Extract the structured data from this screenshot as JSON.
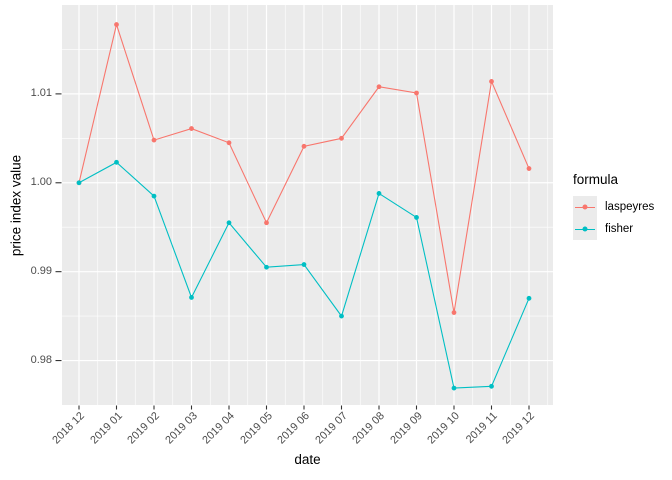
{
  "chart_data": {
    "type": "line",
    "title": "",
    "xlabel": "date",
    "ylabel": "price index value",
    "legend_title": "formula",
    "legend_position": "right",
    "categories": [
      "2018 12",
      "2019 01",
      "2019 02",
      "2019 03",
      "2019 04",
      "2019 05",
      "2019 06",
      "2019 07",
      "2019 08",
      "2019 09",
      "2019 10",
      "2019 11",
      "2019 12"
    ],
    "series": [
      {
        "name": "laspeyres",
        "color": "#F8766D",
        "values": [
          1.0,
          1.0178,
          1.0048,
          1.0061,
          1.0045,
          0.9955,
          1.0041,
          1.005,
          1.0108,
          1.0101,
          0.9854,
          1.0114,
          1.0016
        ]
      },
      {
        "name": "fisher",
        "color": "#00BFC4",
        "values": [
          1.0,
          1.0023,
          0.9985,
          0.9871,
          0.9955,
          0.9905,
          0.9908,
          0.985,
          0.9988,
          0.9961,
          0.9769,
          0.9771,
          0.987
        ]
      }
    ],
    "ylim": [
      0.975,
      1.02
    ],
    "y_ticks": [
      {
        "value": 0.98,
        "label": "0.98"
      },
      {
        "value": 0.99,
        "label": "0.99"
      },
      {
        "value": 1.0,
        "label": "1.00"
      },
      {
        "value": 1.01,
        "label": "1.01"
      }
    ],
    "y_minor_ticks": [
      0.985,
      0.995,
      1.005,
      1.015
    ],
    "grid": true,
    "style": {
      "background": "#FFFFFF",
      "panel_bg": "#EBEBEB",
      "grid_color": "#FFFFFF",
      "tick_mark_color": "#333333",
      "tick_label_color": "#4D4D4D",
      "axis_title_color": "#000000",
      "legend_key_bg": "#EBEBEB"
    }
  }
}
